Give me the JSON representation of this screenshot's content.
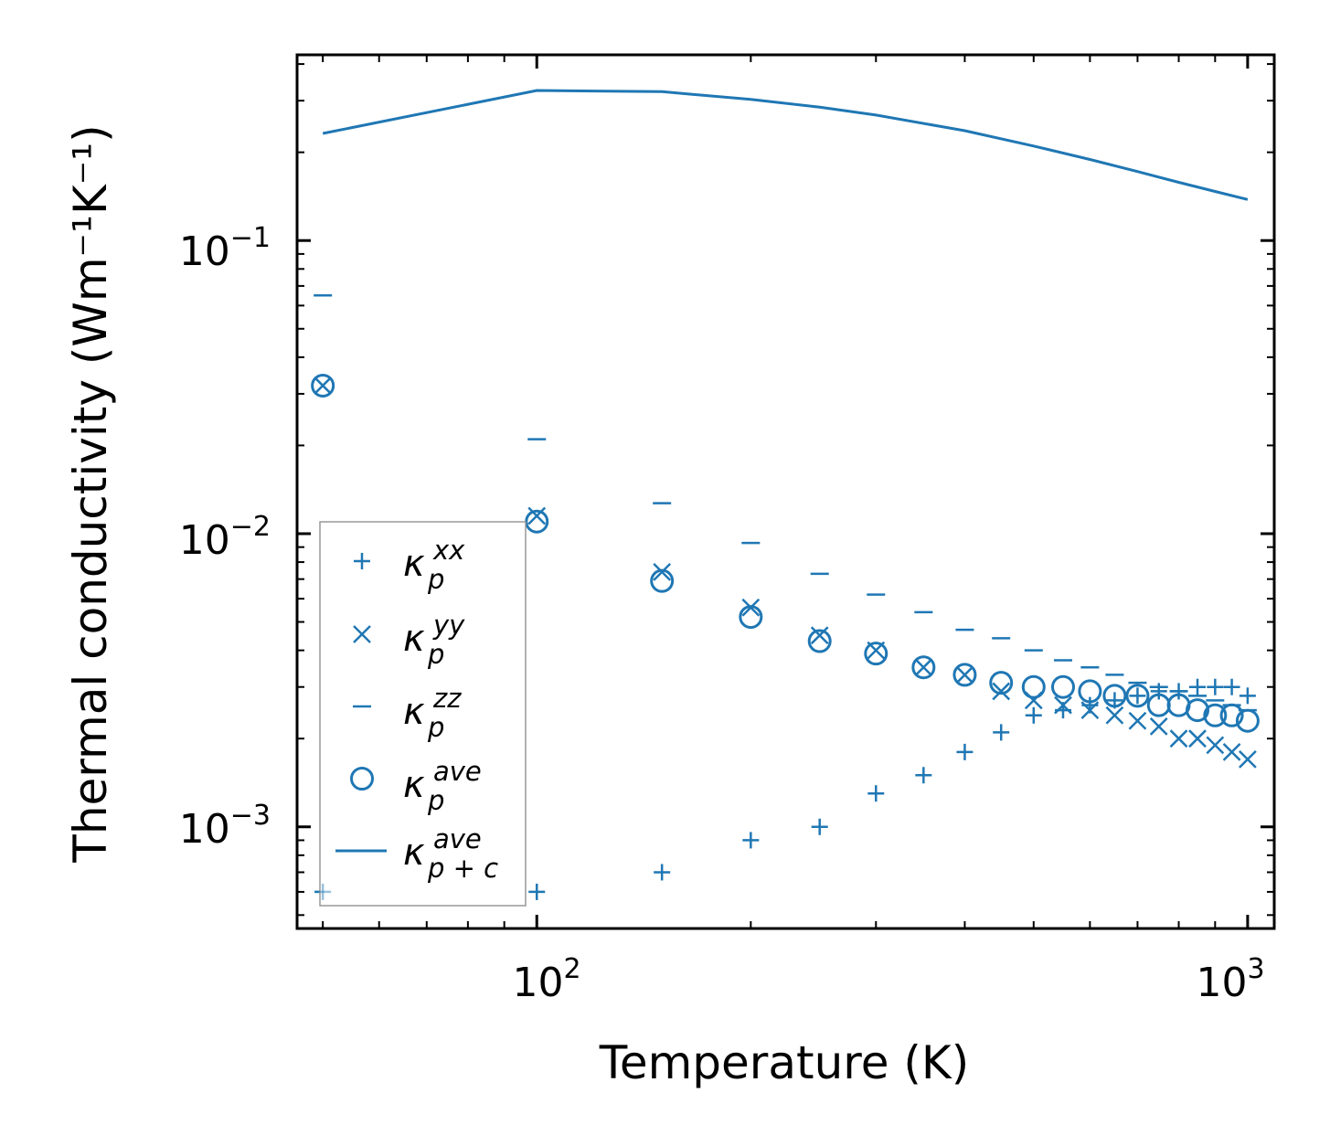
{
  "chart_data": {
    "type": "scatter",
    "title": "",
    "xlabel": "Temperature (K)",
    "ylabel": "Thermal conductivity (Wm⁻¹K⁻¹)",
    "xscale": "log",
    "yscale": "log",
    "xlim": [
      46,
      1090
    ],
    "ylim": [
      0.00045,
      0.43
    ],
    "grid": false,
    "legend_location": "lower-left",
    "x_tick_labels": [
      {
        "value": 100,
        "base": "10",
        "exp": "2"
      },
      {
        "value": 1000,
        "base": "10",
        "exp": "3"
      }
    ],
    "y_tick_labels": [
      {
        "value": 0.1,
        "base": "10",
        "exp": "−1"
      },
      {
        "value": 0.01,
        "base": "10",
        "exp": "−2"
      },
      {
        "value": 0.001,
        "base": "10",
        "exp": "−3"
      }
    ],
    "color": "#1f77b4",
    "series": [
      {
        "name": "kappa_p_xx",
        "label_base": "κ",
        "label_sub": "p",
        "label_sup": "xx",
        "marker": "plus",
        "x": [
          50,
          100,
          150,
          200,
          250,
          300,
          350,
          400,
          450,
          500,
          550,
          600,
          650,
          700,
          750,
          800,
          850,
          900,
          950,
          1000
        ],
        "y": [
          0.0006,
          0.0006,
          0.0007,
          0.0009,
          0.001,
          0.0013,
          0.0015,
          0.0018,
          0.0021,
          0.0024,
          0.0025,
          0.0026,
          0.0027,
          0.0028,
          0.0029,
          0.0029,
          0.003,
          0.003,
          0.003,
          0.0028
        ]
      },
      {
        "name": "kappa_p_yy",
        "label_base": "κ",
        "label_sub": "p",
        "label_sup": "yy",
        "marker": "x",
        "x": [
          50,
          100,
          150,
          200,
          250,
          300,
          350,
          400,
          450,
          500,
          550,
          600,
          650,
          700,
          750,
          800,
          850,
          900,
          950,
          1000
        ],
        "y": [
          0.032,
          0.0115,
          0.0074,
          0.0056,
          0.0045,
          0.004,
          0.0035,
          0.0033,
          0.0029,
          0.0027,
          0.0026,
          0.0025,
          0.0024,
          0.0023,
          0.0022,
          0.002,
          0.002,
          0.0019,
          0.0018,
          0.0017
        ]
      },
      {
        "name": "kappa_p_zz",
        "label_base": "κ",
        "label_sub": "p",
        "label_sup": "zz",
        "marker": "hline",
        "x": [
          50,
          100,
          150,
          200,
          250,
          300,
          350,
          400,
          450,
          500,
          550,
          600,
          650,
          700,
          750,
          800,
          850,
          900,
          950,
          1000
        ],
        "y": [
          0.065,
          0.021,
          0.0127,
          0.0093,
          0.0073,
          0.0062,
          0.0054,
          0.0047,
          0.0044,
          0.004,
          0.0037,
          0.0035,
          0.0033,
          0.0031,
          0.003,
          0.0029,
          0.0028,
          0.0027,
          0.0026,
          0.0025
        ]
      },
      {
        "name": "kappa_p_ave",
        "label_base": "κ",
        "label_sub": "p",
        "label_sup": "ave",
        "marker": "circle",
        "x": [
          50,
          100,
          150,
          200,
          250,
          300,
          350,
          400,
          450,
          500,
          550,
          600,
          650,
          700,
          750,
          800,
          850,
          900,
          950,
          1000
        ],
        "y": [
          0.032,
          0.011,
          0.0069,
          0.0052,
          0.0043,
          0.0039,
          0.0035,
          0.0033,
          0.0031,
          0.003,
          0.003,
          0.0029,
          0.0028,
          0.0028,
          0.0026,
          0.0026,
          0.0025,
          0.0024,
          0.0024,
          0.0023
        ]
      },
      {
        "name": "kappa_p+c_ave",
        "label_base": "κ",
        "label_sub": "p + c",
        "label_sup": "ave",
        "marker": "line",
        "x": [
          50,
          100,
          150,
          200,
          250,
          300,
          400,
          500,
          600,
          700,
          800,
          900,
          1000
        ],
        "y": [
          0.232,
          0.325,
          0.322,
          0.303,
          0.285,
          0.268,
          0.237,
          0.21,
          0.189,
          0.172,
          0.158,
          0.147,
          0.138
        ]
      }
    ]
  }
}
